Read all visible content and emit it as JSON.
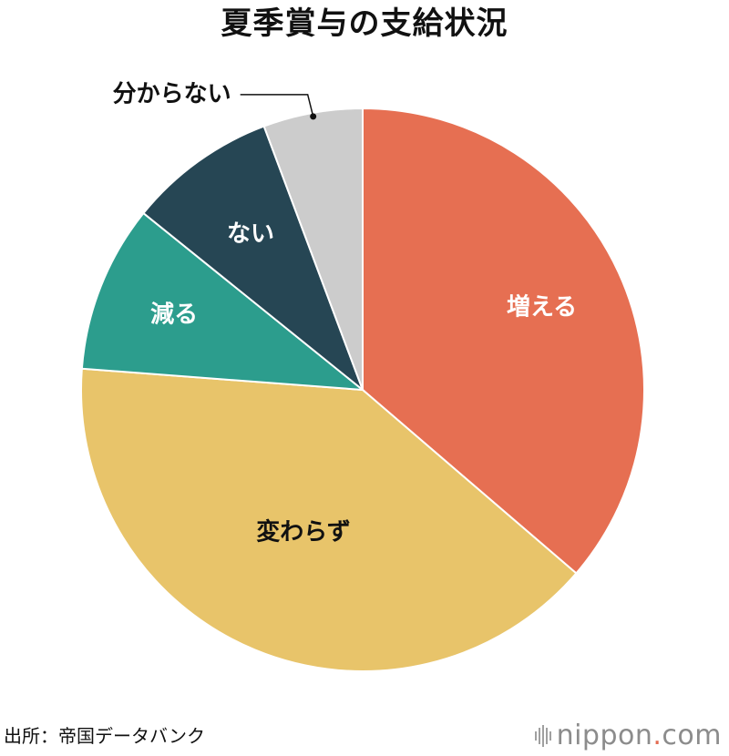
{
  "title": "夏季賞与の支給状況",
  "source": "出所：帝国データバンク",
  "brand": {
    "name": "nippon",
    "dot": ".",
    "tld": "com",
    "icon": "sound-wave-icon"
  },
  "chart_data": {
    "type": "pie",
    "title": "夏季賞与の支給状況",
    "start": "12 o'clock, clockwise",
    "slices": [
      {
        "label": "増える",
        "value": 36.3,
        "color": "#e66f52",
        "label_color": "#ffffff"
      },
      {
        "label": "変わらず",
        "value": 39.9,
        "color": "#e8c46a",
        "label_color": "#111111"
      },
      {
        "label": "減る",
        "value": 9.6,
        "color": "#2c9d8d",
        "label_color": "#ffffff"
      },
      {
        "label": "ない",
        "value": 8.5,
        "color": "#264654",
        "label_color": "#ffffff"
      },
      {
        "label": "分からない",
        "value": 5.7,
        "color": "#cccccc",
        "label_color": "#111111",
        "callout": true
      }
    ]
  }
}
